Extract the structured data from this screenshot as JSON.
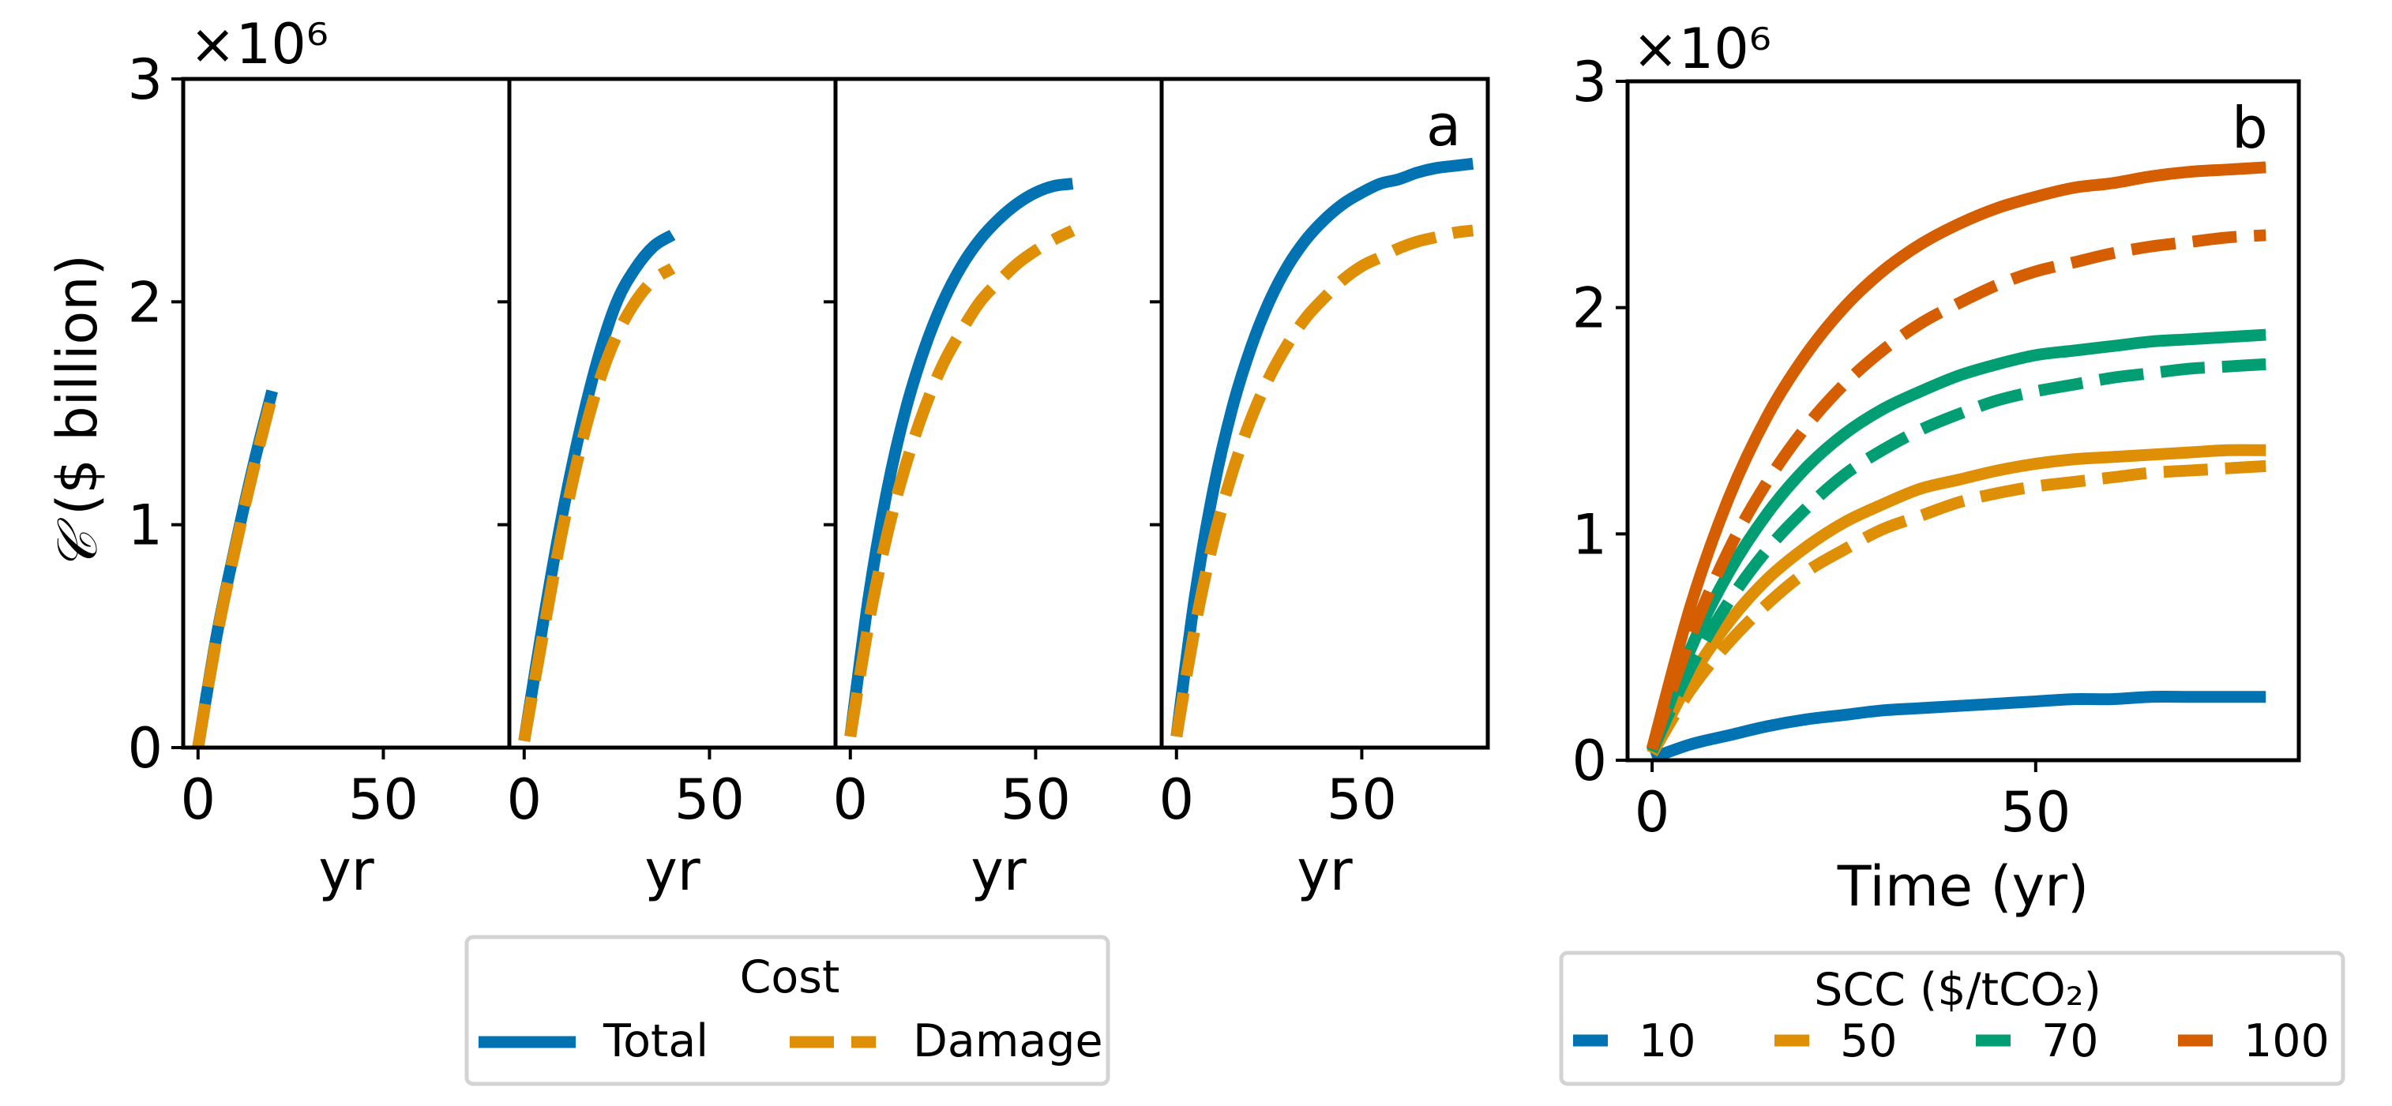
{
  "colors": {
    "blue": "#0173b2",
    "orange": "#de8f05",
    "green": "#029e73",
    "red": "#d55e00"
  },
  "chart_data": [
    {
      "type": "line",
      "panel_label": "a",
      "multiplier": "×10⁶",
      "ylabel_symbol": "𝒞",
      "ylabel_unit": "($ billion)",
      "xlabel": "yr",
      "xlim": [
        -4,
        84
      ],
      "ylim": [
        0,
        3
      ],
      "yticks": [
        0,
        1,
        2,
        3
      ],
      "xticks": [
        0,
        50
      ],
      "legend": {
        "title": "Cost",
        "entries": [
          "Total",
          "Damage"
        ],
        "placement": "below"
      },
      "subplots": [
        {
          "x": [
            0,
            5,
            10,
            15,
            20
          ],
          "total": [
            0.0,
            0.5,
            0.9,
            1.27,
            1.6
          ],
          "damage": [
            0.0,
            0.49,
            0.89,
            1.25,
            1.58
          ]
        },
        {
          "x": [
            0,
            5,
            10,
            15,
            20,
            25,
            30,
            35,
            40
          ],
          "total": [
            0.03,
            0.55,
            1.02,
            1.42,
            1.75,
            2.0,
            2.15,
            2.25,
            2.3
          ],
          "damage": [
            0.03,
            0.5,
            0.95,
            1.33,
            1.63,
            1.85,
            2.0,
            2.1,
            2.15
          ]
        },
        {
          "x": [
            0,
            5,
            10,
            15,
            20,
            25,
            30,
            35,
            40,
            45,
            50,
            55,
            60
          ],
          "total": [
            0.05,
            0.68,
            1.16,
            1.52,
            1.79,
            2.0,
            2.16,
            2.28,
            2.37,
            2.44,
            2.49,
            2.52,
            2.53
          ],
          "damage": [
            0.05,
            0.56,
            0.96,
            1.27,
            1.52,
            1.72,
            1.87,
            2.0,
            2.09,
            2.17,
            2.23,
            2.28,
            2.32
          ]
        },
        {
          "x": [
            0,
            5,
            10,
            15,
            20,
            25,
            30,
            35,
            40,
            45,
            50,
            55,
            60,
            65,
            70,
            75,
            80
          ],
          "total": [
            0.05,
            0.68,
            1.16,
            1.52,
            1.79,
            2.0,
            2.16,
            2.28,
            2.37,
            2.44,
            2.49,
            2.53,
            2.55,
            2.58,
            2.6,
            2.61,
            2.62
          ],
          "damage": [
            0.05,
            0.54,
            0.93,
            1.23,
            1.47,
            1.66,
            1.81,
            1.93,
            2.02,
            2.1,
            2.16,
            2.2,
            2.24,
            2.27,
            2.29,
            2.31,
            2.32
          ]
        }
      ]
    },
    {
      "type": "line",
      "panel_label": "b",
      "multiplier": "×10⁶",
      "xlabel": "Time (yr)",
      "xlim": [
        -3.2,
        84.3
      ],
      "ylim": [
        0,
        3
      ],
      "yticks": [
        0,
        1,
        2,
        3
      ],
      "xticks": [
        0,
        50
      ],
      "legend": {
        "title": "SCC ($/tCO₂)",
        "placement": "below"
      },
      "x": [
        0,
        5,
        10,
        15,
        20,
        25,
        30,
        35,
        40,
        45,
        50,
        55,
        60,
        65,
        70,
        75,
        80
      ],
      "series": [
        {
          "name": "10",
          "color": "#0173b2",
          "total": [
            0.01,
            0.07,
            0.11,
            0.15,
            0.18,
            0.2,
            0.22,
            0.23,
            0.24,
            0.25,
            0.26,
            0.27,
            0.27,
            0.28,
            0.28,
            0.28,
            0.28
          ]
        },
        {
          "name": "50",
          "color": "#de8f05",
          "total": [
            0.03,
            0.36,
            0.61,
            0.8,
            0.94,
            1.05,
            1.13,
            1.2,
            1.24,
            1.28,
            1.31,
            1.33,
            1.34,
            1.35,
            1.36,
            1.37,
            1.37
          ],
          "damage": [
            0.03,
            0.31,
            0.52,
            0.69,
            0.83,
            0.93,
            1.02,
            1.08,
            1.14,
            1.18,
            1.21,
            1.23,
            1.25,
            1.27,
            1.28,
            1.29,
            1.3
          ]
        },
        {
          "name": "70",
          "color": "#029e73",
          "total": [
            0.04,
            0.49,
            0.83,
            1.09,
            1.29,
            1.44,
            1.55,
            1.63,
            1.7,
            1.75,
            1.79,
            1.81,
            1.83,
            1.85,
            1.86,
            1.87,
            1.88
          ],
          "damage": [
            0.04,
            0.41,
            0.7,
            0.93,
            1.11,
            1.26,
            1.37,
            1.46,
            1.53,
            1.59,
            1.63,
            1.66,
            1.69,
            1.71,
            1.73,
            1.74,
            1.75
          ]
        },
        {
          "name": "100",
          "color": "#d55e00",
          "total": [
            0.05,
            0.68,
            1.16,
            1.52,
            1.79,
            2.0,
            2.16,
            2.28,
            2.37,
            2.44,
            2.49,
            2.53,
            2.55,
            2.58,
            2.6,
            2.61,
            2.62
          ],
          "damage": [
            0.05,
            0.54,
            0.93,
            1.23,
            1.47,
            1.66,
            1.81,
            1.93,
            2.02,
            2.1,
            2.16,
            2.2,
            2.24,
            2.27,
            2.29,
            2.31,
            2.32
          ]
        }
      ]
    }
  ]
}
